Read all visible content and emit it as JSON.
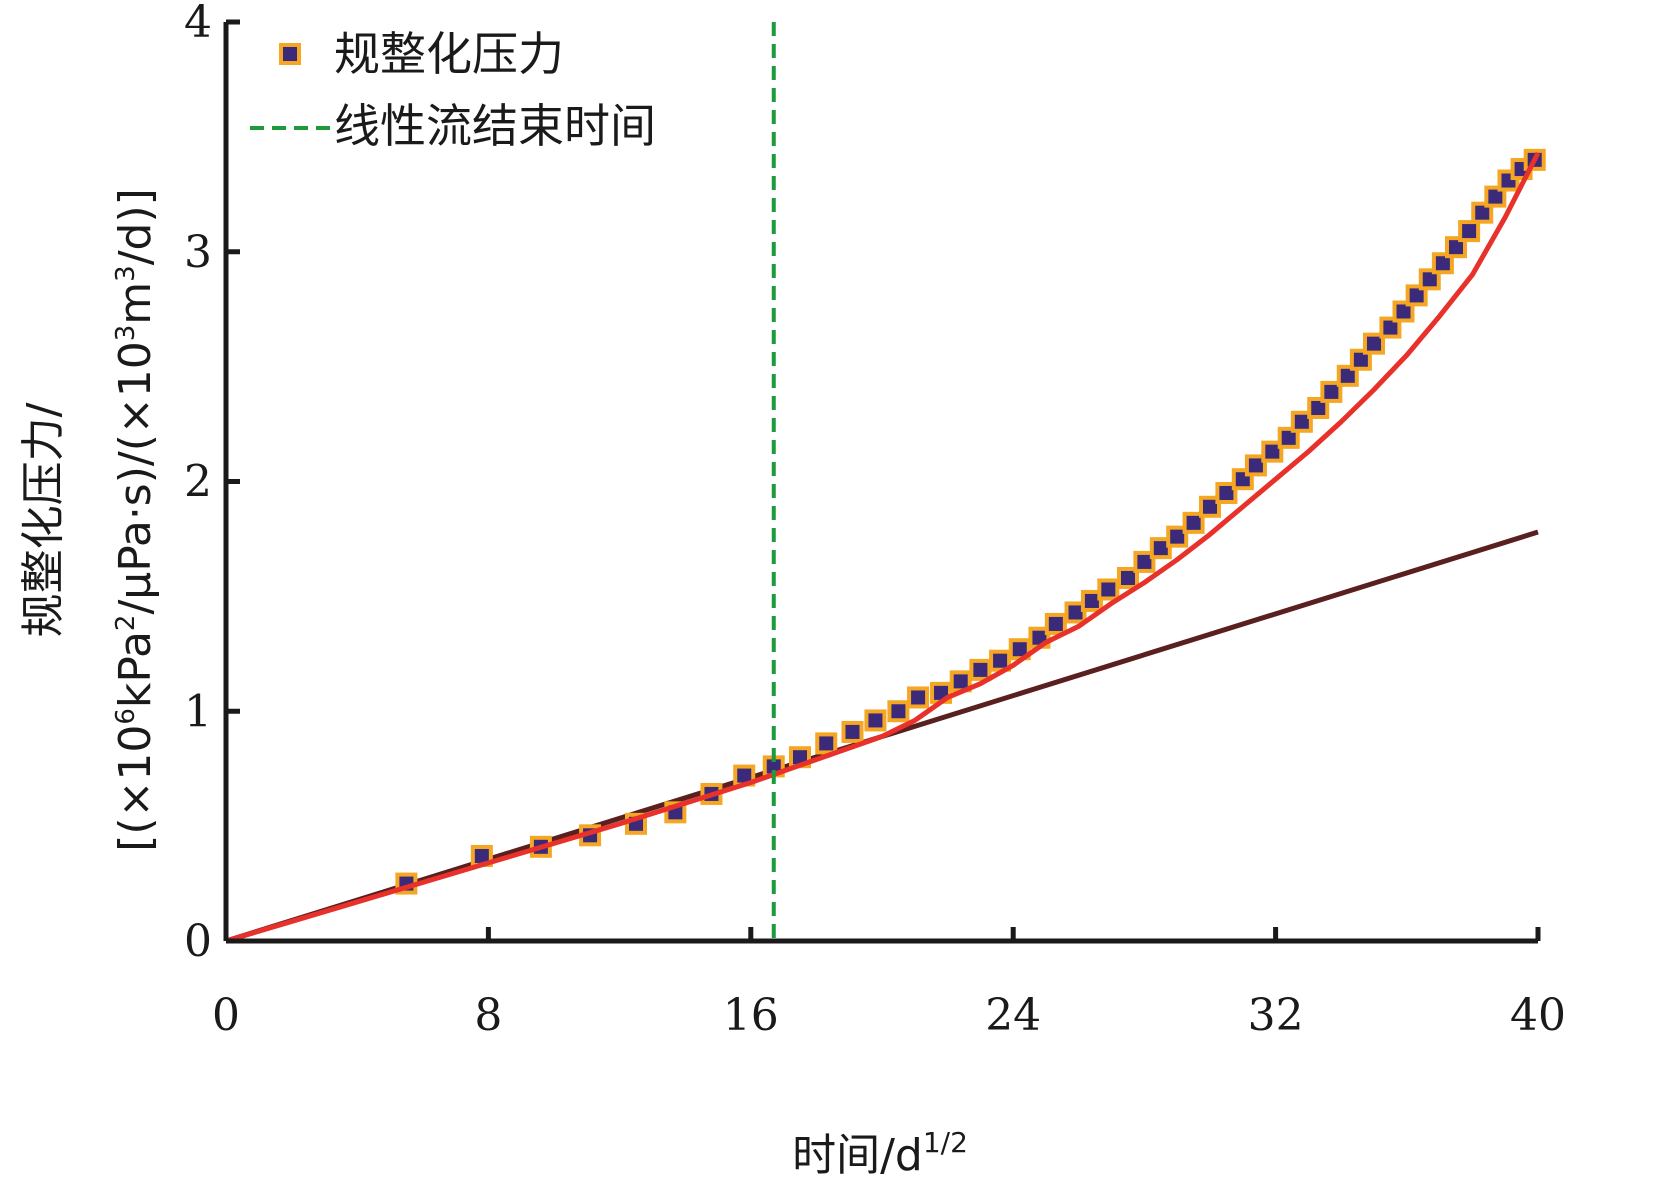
{
  "chart_data": {
    "type": "scatter",
    "xlabel": "时间/d",
    "xlabel_sup": "1/2",
    "ylabel_line1": "规整化压力/",
    "ylabel_line2_parts": [
      "[(×10",
      "6",
      "kPa",
      "2",
      "/μPa·s)/(×10",
      "3",
      "m",
      "3",
      "/d)]"
    ],
    "xlim": [
      0,
      40
    ],
    "ylim": [
      0,
      4
    ],
    "x_ticks": [
      0,
      8,
      16,
      24,
      32,
      40
    ],
    "y_ticks": [
      0,
      1,
      2,
      3,
      4
    ],
    "grid": false,
    "legend_position": "top-left",
    "colors": {
      "marker_fill": "#3b2a7a",
      "marker_edge": "#f5a623",
      "fit_curve": "#e8312a",
      "linear_trend": "#5a1f1f",
      "end_line": "#1e9a3c",
      "axis": "#1a1a1a"
    },
    "series": [
      {
        "name": "规整化压力",
        "kind": "markers",
        "x": [
          5.5,
          7.8,
          9.6,
          11.1,
          12.5,
          13.7,
          14.8,
          15.8,
          16.7,
          17.5,
          18.3,
          19.1,
          19.8,
          20.5,
          21.1,
          21.8,
          22.4,
          23.0,
          23.6,
          24.2,
          24.8,
          25.3,
          25.9,
          26.4,
          26.9,
          27.5,
          28.0,
          28.5,
          29.0,
          29.5,
          30.0,
          30.5,
          31.0,
          31.4,
          31.9,
          32.4,
          32.8,
          33.3,
          33.7,
          34.2,
          34.6,
          35.0,
          35.5,
          35.9,
          36.3,
          36.7,
          37.1,
          37.5,
          37.9,
          38.3,
          38.7,
          39.1,
          39.5,
          39.9
        ],
        "y": [
          0.25,
          0.37,
          0.41,
          0.46,
          0.51,
          0.56,
          0.64,
          0.72,
          0.76,
          0.8,
          0.86,
          0.91,
          0.96,
          1.0,
          1.06,
          1.08,
          1.13,
          1.18,
          1.22,
          1.27,
          1.32,
          1.38,
          1.43,
          1.48,
          1.53,
          1.58,
          1.65,
          1.71,
          1.76,
          1.82,
          1.89,
          1.95,
          2.01,
          2.07,
          2.13,
          2.19,
          2.26,
          2.32,
          2.39,
          2.46,
          2.53,
          2.6,
          2.67,
          2.74,
          2.81,
          2.88,
          2.95,
          3.02,
          3.09,
          3.17,
          3.24,
          3.31,
          3.36,
          3.4
        ]
      },
      {
        "name": "",
        "kind": "fit_curve",
        "x": [
          0,
          4,
          8,
          12,
          16,
          18,
          20,
          21,
          22,
          23,
          24,
          25,
          26,
          27,
          28,
          29,
          30,
          31,
          32,
          33,
          34,
          35,
          36,
          37,
          38,
          39,
          40
        ],
        "y": [
          0,
          0.17,
          0.34,
          0.51,
          0.69,
          0.79,
          0.89,
          0.96,
          1.06,
          1.12,
          1.2,
          1.3,
          1.37,
          1.47,
          1.56,
          1.66,
          1.77,
          1.89,
          2.01,
          2.13,
          2.26,
          2.4,
          2.55,
          2.72,
          2.9,
          3.15,
          3.43
        ]
      },
      {
        "name": "",
        "kind": "linear_trend",
        "x": [
          0,
          40
        ],
        "y": [
          0,
          1.78
        ]
      },
      {
        "name": "线性流结束时间",
        "kind": "vertical_line",
        "x": 16.7
      }
    ]
  }
}
